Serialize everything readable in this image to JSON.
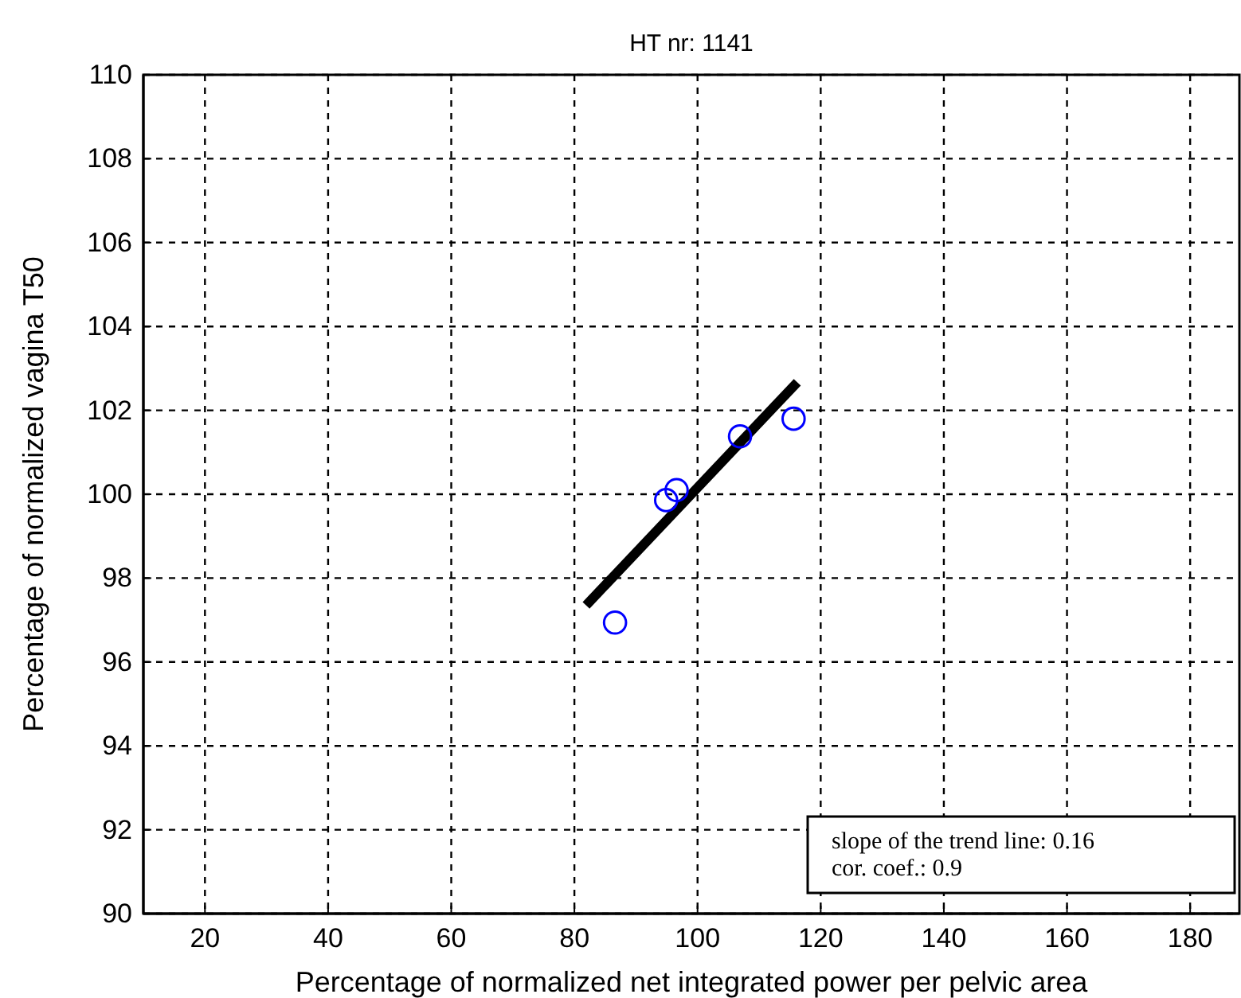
{
  "chart_data": {
    "type": "scatter",
    "title": "HT nr: 1141",
    "xlabel": "Percentage of normalized net integrated power per pelvic area",
    "ylabel": "Percentage of normalized vagina T50",
    "xlim": [
      10,
      188
    ],
    "xticks": [
      20,
      40,
      60,
      80,
      100,
      120,
      140,
      160,
      180
    ],
    "ylim": [
      90,
      110
    ],
    "yticks": [
      90,
      92,
      94,
      96,
      98,
      100,
      102,
      104,
      106,
      108,
      110
    ],
    "grid": true,
    "series": [
      {
        "marker": "circle",
        "color": "#0000ff",
        "x": [
          86.6,
          94.9,
          96.6,
          106.9,
          115.6
        ],
        "values": [
          96.94,
          99.86,
          100.1,
          101.38,
          101.8
        ]
      },
      {
        "type": "line",
        "color": "#000000",
        "x": [
          81.9,
          116.2
        ],
        "values": [
          97.35,
          102.67
        ]
      }
    ],
    "annotations": [
      "slope of the trend line: 0.16",
      "cor. coef.: 0.9"
    ]
  }
}
